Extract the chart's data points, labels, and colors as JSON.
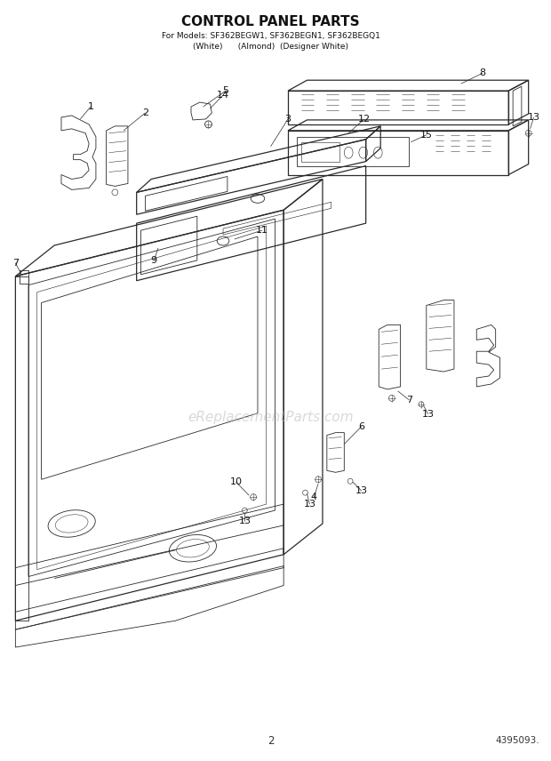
{
  "title": "CONTROL PANEL PARTS",
  "subtitle1": "For Models: SF362BEGW1, SF362BEGN1, SF362BEGQ1",
  "subtitle2": "(White)      (Almond)  (Designer White)",
  "page_number": "2",
  "part_number": "4395093.",
  "watermark": "eReplacementParts.com",
  "bg_color": "#ffffff",
  "line_color": "#2a2a2a",
  "label_color": "#111111",
  "title_color": "#111111",
  "watermark_color": "#bbbbbb"
}
